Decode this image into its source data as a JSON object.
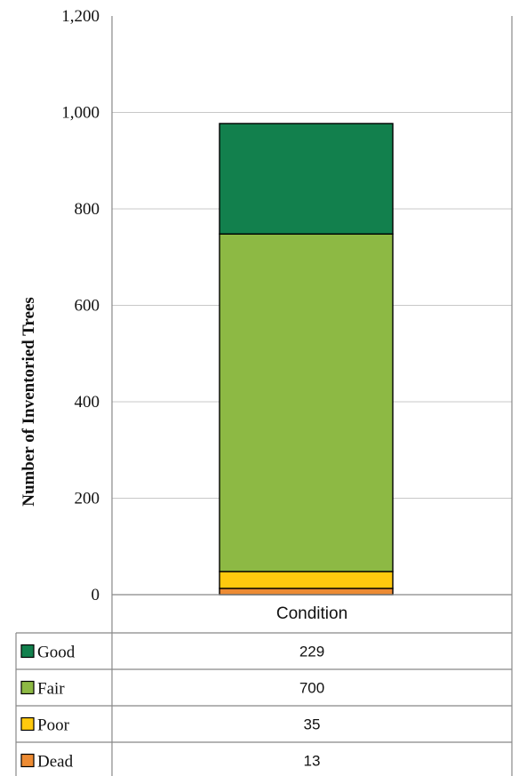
{
  "chart_data": {
    "type": "bar",
    "stacked": true,
    "categories": [
      "Condition"
    ],
    "series": [
      {
        "name": "Dead",
        "values": [
          13
        ],
        "color": "#ED8B33"
      },
      {
        "name": "Poor",
        "values": [
          35
        ],
        "color": "#FFC90E"
      },
      {
        "name": "Fair",
        "values": [
          700
        ],
        "color": "#8DB944"
      },
      {
        "name": "Good",
        "values": [
          229
        ],
        "color": "#12804D"
      }
    ],
    "title": "",
    "xlabel": "",
    "ylabel": "Number of Inventoried Trees",
    "ylim": [
      0,
      1200
    ],
    "yticks": [
      0,
      200,
      400,
      600,
      800,
      1000,
      1200
    ],
    "ytick_labels": [
      "0",
      "200",
      "400",
      "600",
      "800",
      "1,000",
      "1,200"
    ],
    "grid": true,
    "data_table": true,
    "table_order": [
      "Good",
      "Fair",
      "Poor",
      "Dead"
    ]
  }
}
